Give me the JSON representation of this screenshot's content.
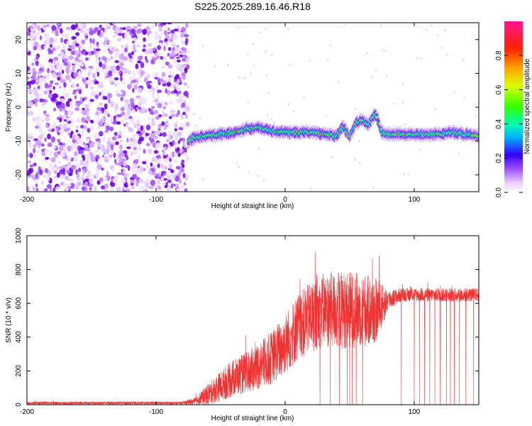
{
  "title": "S225.2025.289.16.46.R18",
  "chart_data": [
    {
      "type": "heatmap",
      "xlabel": "Height of straight line (km)",
      "ylabel": "Frequency (Hz)",
      "xlim": [
        -200,
        150
      ],
      "ylim": [
        -25,
        25
      ],
      "x_ticks": [
        -200,
        -100,
        0,
        100
      ],
      "y_ticks": [
        -20,
        -10,
        0,
        10,
        20
      ],
      "noise_region_x": [
        -200,
        -75
      ],
      "signal_track": {
        "x": [
          -75,
          -70,
          -60,
          -50,
          -40,
          -30,
          -20,
          -10,
          0,
          10,
          20,
          30,
          40,
          45,
          50,
          55,
          60,
          65,
          70,
          75,
          80,
          90,
          100,
          110,
          120,
          130,
          140,
          150
        ],
        "freq": [
          -10,
          -9,
          -8.5,
          -8,
          -7.5,
          -6.5,
          -6,
          -7,
          -7.5,
          -7.5,
          -7.5,
          -8,
          -8.5,
          -5.5,
          -9,
          -4.5,
          -4,
          -5,
          -2,
          -7.5,
          -8,
          -8,
          -8,
          -8,
          -8,
          -7.5,
          -8,
          -8.5
        ]
      },
      "colorbar": {
        "label": "Normalized spectral amplitude",
        "ticks": [
          "0.0",
          "0.2",
          "0.4",
          "0.6",
          "0.8"
        ],
        "range": [
          0,
          1
        ]
      }
    },
    {
      "type": "line",
      "xlabel": "Height of straight line (km)",
      "ylabel": "SNR (10 * v/v)",
      "xlim": [
        -200,
        150
      ],
      "ylim": [
        0,
        1000
      ],
      "x_ticks": [
        -200,
        -100,
        0,
        100
      ],
      "y_ticks": [
        0,
        200,
        400,
        600,
        800,
        1000
      ],
      "color": "#ee3333",
      "envelope": {
        "x": [
          -200,
          -80,
          -70,
          -60,
          -50,
          -40,
          -30,
          -20,
          -10,
          0,
          10,
          20,
          30,
          40,
          50,
          60,
          70,
          80,
          90,
          100,
          120,
          140,
          150
        ],
        "base": [
          10,
          10,
          20,
          60,
          110,
          160,
          190,
          230,
          280,
          360,
          460,
          520,
          560,
          560,
          560,
          560,
          550,
          620,
          650,
          650,
          650,
          650,
          650
        ],
        "noise": [
          8,
          8,
          20,
          60,
          90,
          110,
          120,
          140,
          160,
          180,
          200,
          210,
          220,
          230,
          230,
          220,
          200,
          60,
          40,
          40,
          40,
          40,
          40
        ]
      },
      "dropouts_x": [
        27,
        35,
        42,
        48,
        50,
        52,
        55,
        60,
        90,
        100,
        104,
        108,
        112,
        116,
        120,
        125,
        128,
        131,
        135,
        140,
        146
      ]
    }
  ]
}
